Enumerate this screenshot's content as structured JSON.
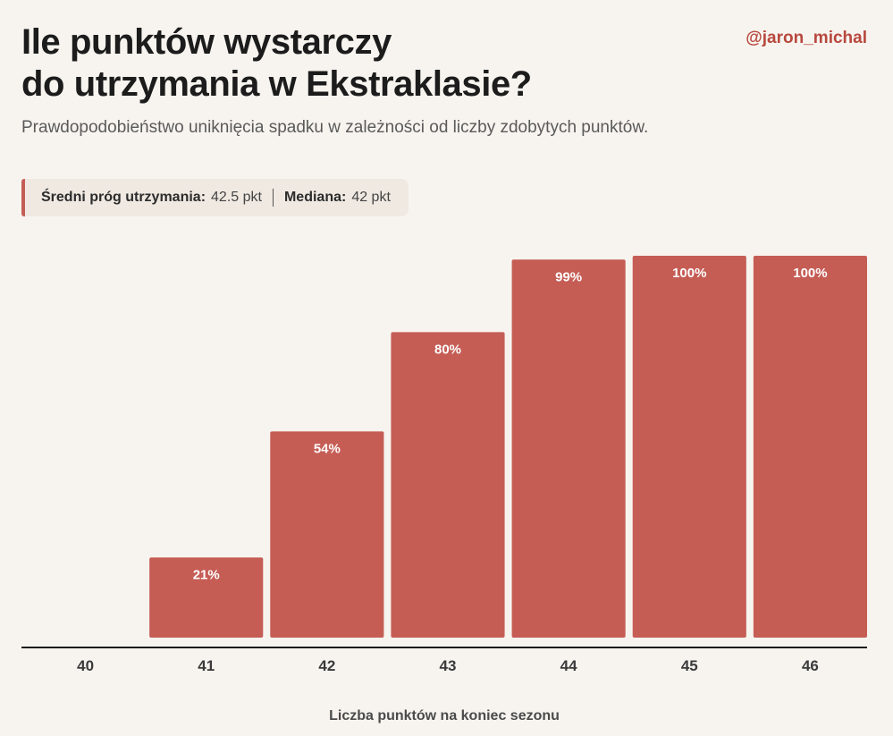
{
  "header": {
    "title_line1": "Ile punktów wystarczy",
    "title_line2": "do utrzymania w Ekstraklasie?",
    "handle": "@jaron_michal",
    "subtitle": "Prawdopodobieństwo uniknięcia spadku w zależności od liczby zdobytych punktów."
  },
  "stats": {
    "mean_label": "Średni próg utrzymania:",
    "mean_value": "42.5 pkt",
    "median_label": "Mediana:",
    "median_value": "42 pkt"
  },
  "colors": {
    "bar": "#c55d55",
    "accent": "#b8483e",
    "background": "#f7f4ef"
  },
  "chart_data": {
    "type": "bar",
    "categories": [
      "40",
      "41",
      "42",
      "43",
      "44",
      "45",
      "46"
    ],
    "values": [
      0,
      21,
      54,
      80,
      99,
      100,
      100
    ],
    "data_labels": [
      "",
      "21%",
      "54%",
      "80%",
      "99%",
      "100%",
      "100%"
    ],
    "title": "Ile punktów wystarczy do utrzymania w Ekstraklasie?",
    "xlabel": "Liczba punktów na koniec sezonu",
    "ylabel": "",
    "ylim": [
      0,
      100
    ],
    "grid": false,
    "legend": "none"
  }
}
